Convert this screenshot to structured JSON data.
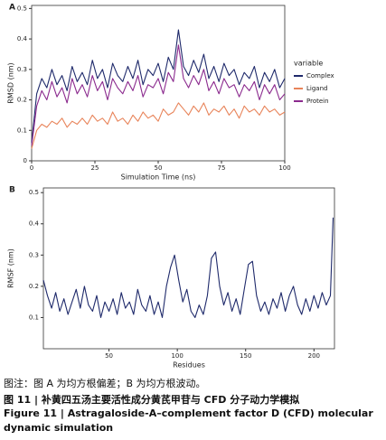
{
  "chart_data": [
    {
      "type": "line",
      "panel": "A",
      "xlabel": "Simulation Time (ns)",
      "ylabel": "RMSD (nm)",
      "legend_title": "variable",
      "legend": "right",
      "x": [
        0,
        2,
        4,
        6,
        8,
        10,
        12,
        14,
        16,
        18,
        20,
        22,
        24,
        26,
        28,
        30,
        32,
        34,
        36,
        38,
        40,
        42,
        44,
        46,
        48,
        50,
        52,
        54,
        56,
        58,
        60,
        62,
        64,
        66,
        68,
        70,
        72,
        74,
        76,
        78,
        80,
        82,
        84,
        86,
        88,
        90,
        92,
        94,
        96,
        98,
        100
      ],
      "series": [
        {
          "name": "Complex",
          "color": "#1f2a6b",
          "values": [
            0.06,
            0.22,
            0.27,
            0.24,
            0.3,
            0.25,
            0.28,
            0.23,
            0.31,
            0.26,
            0.29,
            0.25,
            0.33,
            0.27,
            0.3,
            0.24,
            0.32,
            0.28,
            0.26,
            0.31,
            0.27,
            0.33,
            0.25,
            0.3,
            0.28,
            0.32,
            0.26,
            0.34,
            0.3,
            0.43,
            0.31,
            0.28,
            0.33,
            0.29,
            0.35,
            0.27,
            0.31,
            0.26,
            0.32,
            0.28,
            0.3,
            0.25,
            0.29,
            0.27,
            0.31,
            0.24,
            0.29,
            0.26,
            0.3,
            0.24,
            0.27
          ]
        },
        {
          "name": "Ligand",
          "color": "#e8845a",
          "values": [
            0.04,
            0.1,
            0.12,
            0.11,
            0.13,
            0.12,
            0.14,
            0.11,
            0.13,
            0.12,
            0.14,
            0.12,
            0.15,
            0.13,
            0.14,
            0.12,
            0.16,
            0.13,
            0.14,
            0.12,
            0.15,
            0.13,
            0.16,
            0.14,
            0.15,
            0.13,
            0.17,
            0.15,
            0.16,
            0.19,
            0.17,
            0.15,
            0.18,
            0.16,
            0.19,
            0.15,
            0.17,
            0.16,
            0.18,
            0.15,
            0.17,
            0.14,
            0.18,
            0.16,
            0.17,
            0.15,
            0.18,
            0.16,
            0.17,
            0.15,
            0.16
          ]
        },
        {
          "name": "Protein",
          "color": "#8b2a8e",
          "values": [
            0.05,
            0.18,
            0.23,
            0.2,
            0.26,
            0.21,
            0.24,
            0.19,
            0.27,
            0.22,
            0.25,
            0.21,
            0.28,
            0.23,
            0.26,
            0.2,
            0.27,
            0.24,
            0.22,
            0.26,
            0.23,
            0.28,
            0.21,
            0.25,
            0.24,
            0.27,
            0.22,
            0.29,
            0.26,
            0.38,
            0.27,
            0.24,
            0.28,
            0.25,
            0.3,
            0.23,
            0.26,
            0.22,
            0.27,
            0.24,
            0.25,
            0.21,
            0.25,
            0.23,
            0.26,
            0.2,
            0.25,
            0.22,
            0.25,
            0.2,
            0.22
          ]
        }
      ],
      "xlim": [
        0,
        100
      ],
      "xticks": [
        0,
        25,
        50,
        75,
        100
      ],
      "ylim": [
        0,
        0.51
      ],
      "yticks": [
        0,
        0.1,
        0.2,
        0.3,
        0.4,
        0.5
      ]
    },
    {
      "type": "line",
      "panel": "B",
      "xlabel": "Residues",
      "ylabel": "RMSF (nm)",
      "color": "#1f2a6b",
      "x": [
        2,
        5,
        8,
        11,
        14,
        17,
        20,
        23,
        26,
        29,
        32,
        35,
        38,
        41,
        44,
        47,
        50,
        53,
        56,
        59,
        62,
        65,
        68,
        71,
        74,
        77,
        80,
        83,
        86,
        89,
        92,
        95,
        98,
        101,
        104,
        107,
        110,
        113,
        116,
        119,
        122,
        125,
        128,
        131,
        134,
        137,
        140,
        143,
        146,
        149,
        152,
        155,
        158,
        161,
        164,
        167,
        170,
        173,
        176,
        179,
        182,
        185,
        188,
        191,
        194,
        197,
        200,
        203,
        206,
        209,
        212,
        214
      ],
      "values": [
        0.22,
        0.17,
        0.13,
        0.18,
        0.12,
        0.16,
        0.11,
        0.15,
        0.19,
        0.13,
        0.2,
        0.14,
        0.12,
        0.17,
        0.1,
        0.15,
        0.12,
        0.16,
        0.11,
        0.18,
        0.13,
        0.15,
        0.11,
        0.19,
        0.14,
        0.12,
        0.17,
        0.11,
        0.15,
        0.1,
        0.2,
        0.26,
        0.3,
        0.22,
        0.15,
        0.19,
        0.12,
        0.1,
        0.14,
        0.11,
        0.17,
        0.29,
        0.31,
        0.2,
        0.14,
        0.18,
        0.12,
        0.16,
        0.11,
        0.19,
        0.27,
        0.28,
        0.17,
        0.12,
        0.15,
        0.11,
        0.16,
        0.13,
        0.18,
        0.12,
        0.17,
        0.2,
        0.14,
        0.11,
        0.16,
        0.12,
        0.17,
        0.13,
        0.18,
        0.14,
        0.17,
        0.42
      ],
      "xlim": [
        2,
        215
      ],
      "xticks": [
        50,
        100,
        150,
        200
      ],
      "ylim": [
        0,
        0.515
      ],
      "yticks": [
        0.1,
        0.2,
        0.3,
        0.4,
        0.5
      ]
    }
  ],
  "caption": {
    "note": "图注：图 A 为均方根偏差；B 为均方根波动。",
    "title_cn": "图 11 | 补黄四五汤主要活性成分黄芪甲苷与 CFD 分子动力学模拟",
    "title_en_1": "Figure 11  |  Astragaloside-A–complement factor D (CFD) molecular",
    "title_en_2": "dynamic simulation"
  }
}
